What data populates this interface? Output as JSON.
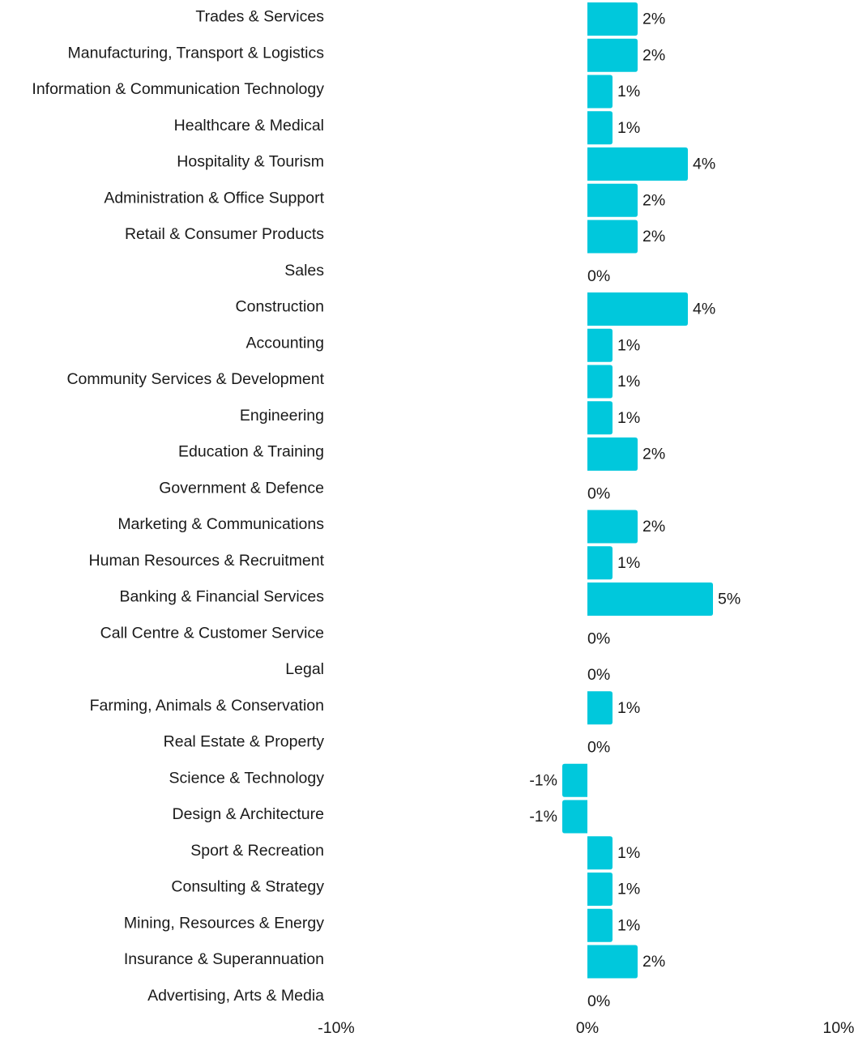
{
  "chart_data": {
    "type": "bar",
    "orientation": "horizontal",
    "title": "",
    "xlabel": "",
    "ylabel": "",
    "xlim": [
      -10,
      10
    ],
    "x_ticks": [
      "-10%",
      "0%",
      "10%"
    ],
    "x_tick_values": [
      -10,
      0,
      10
    ],
    "grid": false,
    "bar_color": "#00C8DC",
    "categories": [
      "Trades & Services",
      "Manufacturing, Transport & Logistics",
      "Information & Communication Technology",
      "Healthcare & Medical",
      "Hospitality & Tourism",
      "Administration & Office Support",
      "Retail & Consumer Products",
      "Sales",
      "Construction",
      "Accounting",
      "Community Services & Development",
      "Engineering",
      "Education & Training",
      "Government & Defence",
      "Marketing & Communications",
      "Human Resources & Recruitment",
      "Banking & Financial Services",
      "Call Centre & Customer Service",
      "Legal",
      "Farming, Animals & Conservation",
      "Real Estate & Property",
      "Science & Technology",
      "Design & Architecture",
      "Sport & Recreation",
      "Consulting & Strategy",
      "Mining, Resources & Energy",
      "Insurance & Superannuation",
      "Advertising, Arts & Media"
    ],
    "values": [
      2,
      2,
      1,
      1,
      4,
      2,
      2,
      0,
      4,
      1,
      1,
      1,
      2,
      0,
      2,
      1,
      5,
      0,
      0,
      1,
      0,
      -1,
      -1,
      1,
      1,
      1,
      2,
      0
    ],
    "value_labels": [
      "2%",
      "2%",
      "1%",
      "1%",
      "4%",
      "2%",
      "2%",
      "0%",
      "4%",
      "1%",
      "1%",
      "1%",
      "2%",
      "0%",
      "2%",
      "1%",
      "5%",
      "0%",
      "0%",
      "1%",
      "0%",
      "-1%",
      "-1%",
      "1%",
      "1%",
      "1%",
      "2%",
      "0%"
    ]
  }
}
